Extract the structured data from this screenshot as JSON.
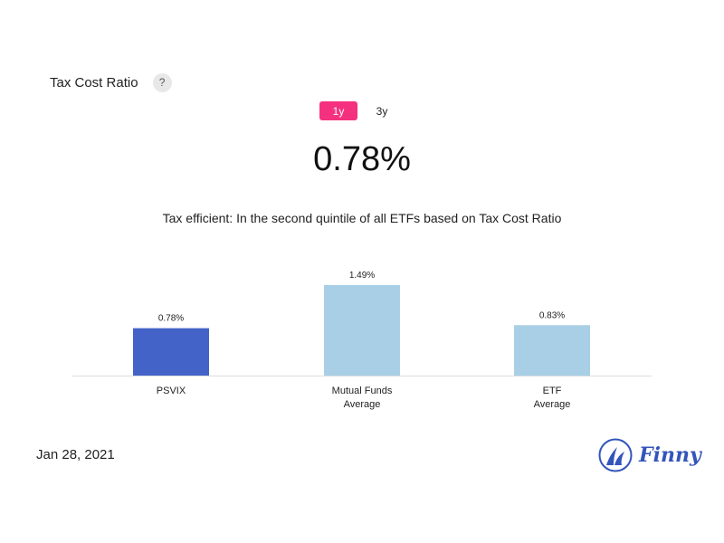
{
  "header": {
    "title": "Tax Cost Ratio",
    "help_label": "?"
  },
  "tabs": [
    {
      "label": "1y",
      "active": true
    },
    {
      "label": "3y",
      "active": false
    }
  ],
  "main_value": "0.78%",
  "description": "Tax efficient: In the second quintile of all ETFs based on Tax Cost Ratio",
  "chart_data": {
    "type": "bar",
    "title": "",
    "xlabel": "",
    "ylabel": "",
    "categories": [
      [
        "PSVIX"
      ],
      [
        "Mutual Funds",
        "Average"
      ],
      [
        "ETF",
        "Average"
      ]
    ],
    "values": [
      0.78,
      1.49,
      0.83
    ],
    "value_labels": [
      "0.78%",
      "1.49%",
      "0.83%"
    ],
    "colors": [
      "#4363c8",
      "#a8cfe6",
      "#a8cfe6"
    ],
    "ylim": [
      0,
      1.49
    ],
    "grid": false,
    "legend": "none"
  },
  "footer": {
    "date": "Jan 28, 2021",
    "logo_text": "Finny"
  },
  "colors": {
    "accent": "#f5317f",
    "brand": "#3355bb"
  }
}
